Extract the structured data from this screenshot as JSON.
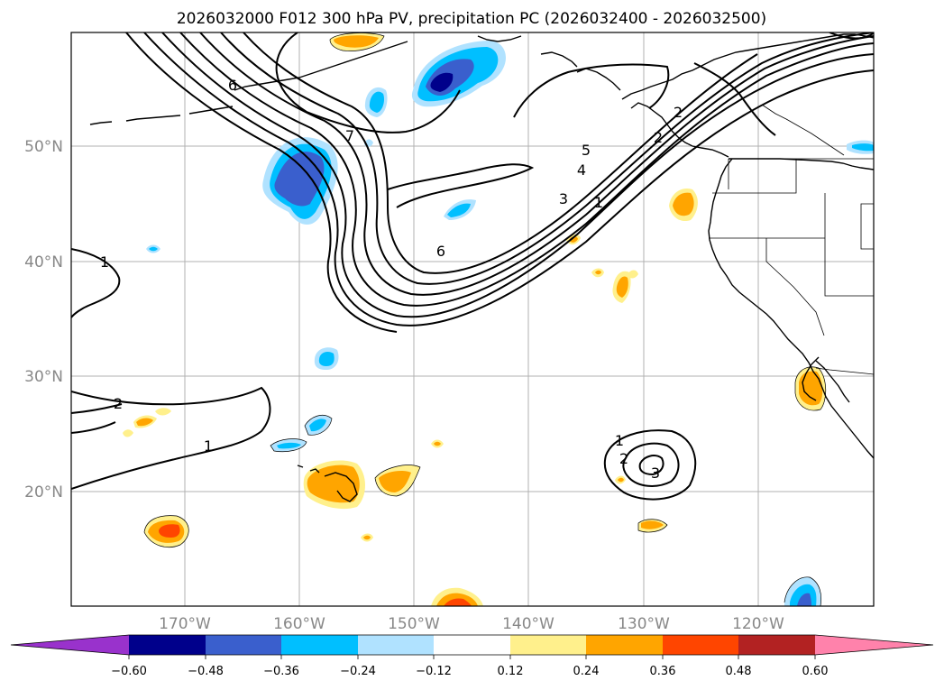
{
  "map": {
    "title": "2026032000 F012 300 hPa PV, precipitation PC (2026032400 - 2026032500)",
    "lat_labels": [
      "50°N",
      "40°N",
      "30°N",
      "20°N"
    ],
    "lon_labels": [
      "170°W",
      "160°W",
      "150°W",
      "140°W",
      "130°W",
      "120°W"
    ],
    "pv_contour_labels": [
      "6",
      "7",
      "1",
      "5",
      "4",
      "3",
      "1",
      "2",
      "6",
      "1",
      "1",
      "2",
      "3",
      "2",
      "2"
    ]
  },
  "colorbar": {
    "ticks": [
      "−0.60",
      "−0.48",
      "−0.36",
      "−0.24",
      "−0.12",
      "0.12",
      "0.24",
      "0.36",
      "0.48",
      "0.60"
    ],
    "colors": {
      "under": "#9932cc",
      "c1": "#00008b",
      "c2": "#3a5fcd",
      "c3": "#00bfff",
      "c4": "#b0e2ff",
      "c5": "#ffffff",
      "c6": "#fff08c",
      "c7": "#ffa500",
      "c8": "#ff4500",
      "c9": "#b22222",
      "over": "#ff82ab"
    }
  }
}
